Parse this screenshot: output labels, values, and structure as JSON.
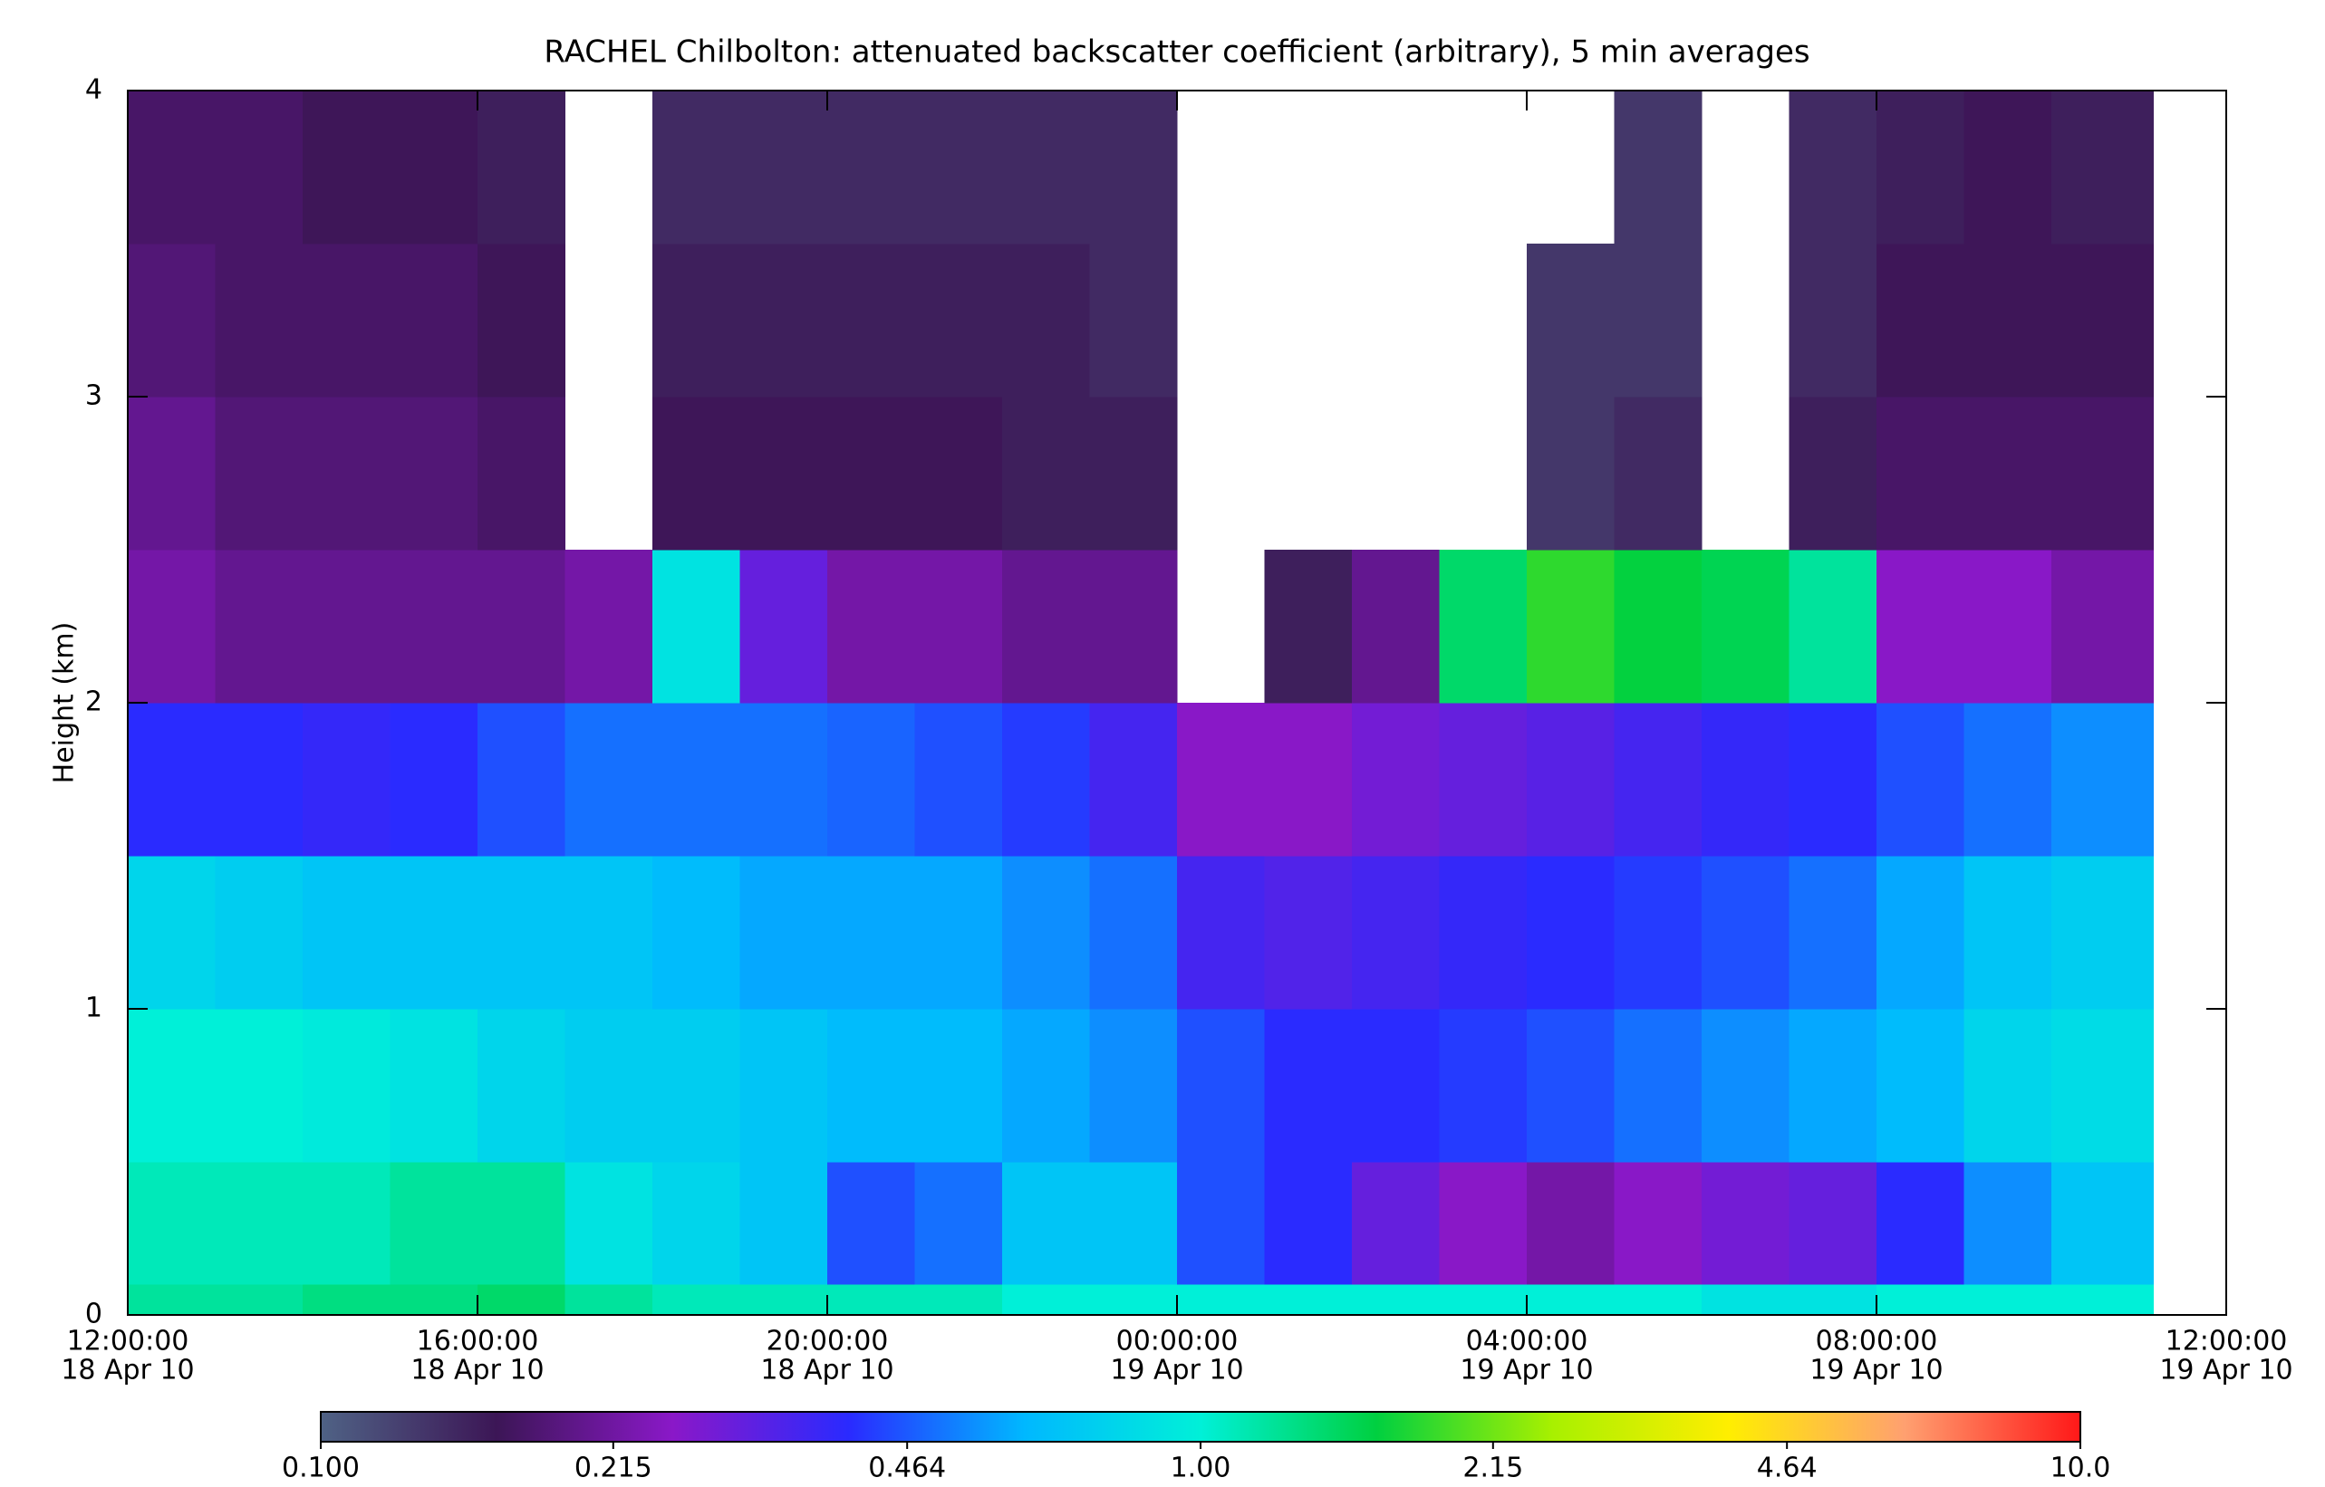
{
  "chart_data": {
    "type": "heatmap",
    "title": "RACHEL Chilbolton: attenuated backscatter coefficient (arbitrary), 5 min averages",
    "ylabel": "Height (km)",
    "xbins": [
      "2010-04-18 12:00:00",
      "2010-04-18 13:00:00",
      "2010-04-18 14:00:00",
      "2010-04-18 15:00:00",
      "2010-04-18 16:00:00",
      "2010-04-18 17:00:00",
      "2010-04-18 18:00:00",
      "2010-04-18 19:00:00",
      "2010-04-18 20:00:00",
      "2010-04-18 21:00:00",
      "2010-04-18 22:00:00",
      "2010-04-18 23:00:00",
      "2010-04-19 00:00:00",
      "2010-04-19 01:00:00",
      "2010-04-19 02:00:00",
      "2010-04-19 03:00:00",
      "2010-04-19 04:00:00",
      "2010-04-19 05:00:00",
      "2010-04-19 06:00:00",
      "2010-04-19 07:00:00",
      "2010-04-19 08:00:00",
      "2010-04-19 09:00:00",
      "2010-04-19 10:00:00",
      "2010-04-19 11:10:00"
    ],
    "ybins": [
      0,
      0.1,
      0.5,
      1,
      1.5,
      2,
      2.5,
      3,
      3.5,
      4
    ],
    "values": [
      [
        1.2,
        1.2,
        1.3,
        1.3,
        1.4,
        1.2,
        1.1,
        1.1,
        1.1,
        1.1,
        1.0,
        1.0,
        1.0,
        1.0,
        1.0,
        1.0,
        1.0,
        1.0,
        0.9,
        0.9,
        1.0,
        1.0,
        1.0
      ],
      [
        1.1,
        1.1,
        1.1,
        1.2,
        1.2,
        0.9,
        0.8,
        0.7,
        0.45,
        0.5,
        0.7,
        0.7,
        0.45,
        0.4,
        0.3,
        0.25,
        0.22,
        0.25,
        0.28,
        0.3,
        0.4,
        0.55,
        0.7
      ],
      [
        1.0,
        1.0,
        0.95,
        0.9,
        0.8,
        0.75,
        0.75,
        0.7,
        0.65,
        0.65,
        0.6,
        0.55,
        0.45,
        0.4,
        0.4,
        0.42,
        0.45,
        0.5,
        0.55,
        0.6,
        0.65,
        0.8,
        0.85
      ],
      [
        0.8,
        0.75,
        0.7,
        0.7,
        0.7,
        0.7,
        0.65,
        0.6,
        0.6,
        0.6,
        0.55,
        0.5,
        0.35,
        0.33,
        0.35,
        0.38,
        0.4,
        0.42,
        0.45,
        0.5,
        0.6,
        0.7,
        0.75
      ],
      [
        0.4,
        0.4,
        0.38,
        0.4,
        0.45,
        0.5,
        0.5,
        0.5,
        0.48,
        0.45,
        0.42,
        0.35,
        0.25,
        0.25,
        0.28,
        0.3,
        0.32,
        0.35,
        0.38,
        0.4,
        0.45,
        0.5,
        0.55
      ],
      [
        0.22,
        0.2,
        0.2,
        0.2,
        0.2,
        0.22,
        0.9,
        0.3,
        0.22,
        0.22,
        0.2,
        0.2,
        null,
        0.15,
        0.2,
        1.4,
        1.8,
        1.6,
        1.5,
        1.2,
        0.25,
        0.25,
        0.22
      ],
      [
        0.2,
        0.18,
        0.18,
        0.18,
        0.17,
        null,
        0.16,
        0.16,
        0.16,
        0.16,
        0.15,
        0.15,
        null,
        null,
        null,
        null,
        0.13,
        0.14,
        null,
        0.15,
        0.17,
        0.17,
        0.17
      ],
      [
        0.18,
        0.17,
        0.17,
        0.17,
        0.16,
        null,
        0.15,
        0.15,
        0.15,
        0.15,
        0.15,
        0.14,
        null,
        null,
        null,
        null,
        0.13,
        0.13,
        null,
        0.14,
        0.16,
        0.16,
        0.16
      ],
      [
        0.17,
        0.17,
        0.16,
        0.16,
        0.15,
        null,
        0.14,
        0.14,
        0.14,
        0.14,
        0.14,
        0.14,
        null,
        null,
        null,
        null,
        null,
        0.13,
        null,
        0.14,
        0.15,
        0.16,
        0.15
      ]
    ],
    "xlim": [
      "2010-04-18 12:00:00",
      "2010-04-19 12:00:00"
    ],
    "xticks": [
      {
        "value": "2010-04-18 12:00:00",
        "label": [
          "12:00:00",
          "18 Apr 10"
        ]
      },
      {
        "value": "2010-04-18 16:00:00",
        "label": [
          "16:00:00",
          "18 Apr 10"
        ]
      },
      {
        "value": "2010-04-18 20:00:00",
        "label": [
          "20:00:00",
          "18 Apr 10"
        ]
      },
      {
        "value": "2010-04-19 00:00:00",
        "label": [
          "00:00:00",
          "19 Apr 10"
        ]
      },
      {
        "value": "2010-04-19 04:00:00",
        "label": [
          "04:00:00",
          "19 Apr 10"
        ]
      },
      {
        "value": "2010-04-19 08:00:00",
        "label": [
          "08:00:00",
          "19 Apr 10"
        ]
      },
      {
        "value": "2010-04-19 12:00:00",
        "label": [
          "12:00:00",
          "19 Apr 10"
        ]
      }
    ],
    "ylim": [
      0,
      4
    ],
    "yticks": [
      0,
      1,
      2,
      3,
      4
    ],
    "clim": [
      0.1,
      10
    ],
    "color_scale": "log",
    "colormap": [
      "#4f6285",
      "#3c1656",
      "#8a18c8",
      "#2a2aff",
      "#00b8ff",
      "#00f0d8",
      "#00d040",
      "#a8f000",
      "#ffee00",
      "#ffa070",
      "#ff1818"
    ],
    "cticks": [
      {
        "value": 0.1,
        "label": "0.100"
      },
      {
        "value": 0.215,
        "label": "0.215"
      },
      {
        "value": 0.464,
        "label": "0.464"
      },
      {
        "value": 1,
        "label": "1.00"
      },
      {
        "value": 2.15,
        "label": "2.15"
      },
      {
        "value": 4.64,
        "label": "4.64"
      },
      {
        "value": 10,
        "label": "10.0"
      }
    ]
  }
}
